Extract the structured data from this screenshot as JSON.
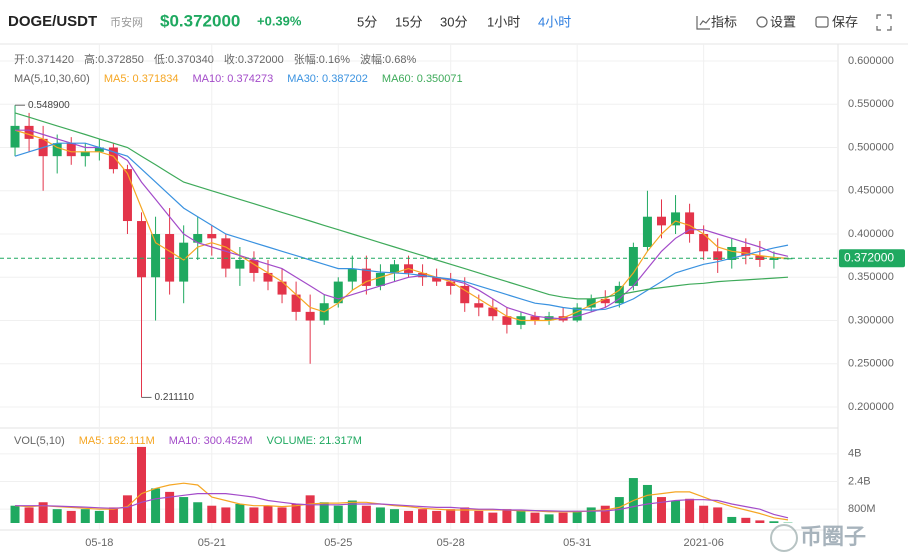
{
  "header": {
    "symbol": "DOGE/USDT",
    "exchange": "币安网",
    "price": "$0.372000",
    "change": "+0.39%",
    "intervals": [
      "5分",
      "15分",
      "30分",
      "1小时",
      "4小时"
    ],
    "active_interval": 4,
    "tools": [
      "指标",
      "设置",
      "保存"
    ]
  },
  "watermark": "币圈子",
  "chart_data": {
    "type": "candlestick",
    "info": [
      "开:0.371420",
      "高:0.372850",
      "低:0.370340",
      "收:0.372000",
      "张幅:0.16%",
      "波幅:0.68%"
    ],
    "ma_title": "MA(5,10,30,60)",
    "up_color": "#1fa960",
    "down_color": "#e3344a",
    "categories": [
      null,
      null,
      null,
      null,
      null,
      null,
      "05-18",
      null,
      null,
      null,
      null,
      null,
      null,
      null,
      "05-21",
      null,
      null,
      null,
      null,
      null,
      null,
      null,
      null,
      "05-25",
      null,
      null,
      null,
      null,
      null,
      null,
      null,
      "05-28",
      null,
      null,
      null,
      null,
      null,
      null,
      null,
      null,
      "05-31",
      null,
      null,
      null,
      null,
      null,
      null,
      null,
      null,
      "2021-06",
      null,
      null,
      null,
      null,
      null,
      null
    ],
    "open": [
      0.5,
      0.525,
      0.51,
      0.49,
      0.505,
      0.49,
      0.495,
      0.5,
      0.475,
      0.415,
      0.35,
      0.4,
      0.345,
      0.39,
      0.4,
      0.395,
      0.36,
      0.37,
      0.355,
      0.345,
      0.33,
      0.31,
      0.3,
      0.32,
      0.345,
      0.36,
      0.34,
      0.355,
      0.365,
      0.355,
      0.35,
      0.345,
      0.34,
      0.32,
      0.315,
      0.305,
      0.295,
      0.305,
      0.3,
      0.305,
      0.3,
      0.315,
      0.325,
      0.32,
      0.34,
      0.385,
      0.42,
      0.41,
      0.425,
      0.4,
      0.38,
      0.37,
      0.385,
      0.375,
      0.37,
      0.37142
    ],
    "high": [
      0.5489,
      0.54,
      0.525,
      0.515,
      0.512,
      0.505,
      0.51,
      0.505,
      0.48,
      0.425,
      0.42,
      0.43,
      0.41,
      0.42,
      0.41,
      0.4,
      0.385,
      0.38,
      0.37,
      0.36,
      0.345,
      0.33,
      0.33,
      0.35,
      0.375,
      0.375,
      0.365,
      0.37,
      0.375,
      0.365,
      0.36,
      0.355,
      0.35,
      0.33,
      0.325,
      0.315,
      0.31,
      0.31,
      0.31,
      0.315,
      0.32,
      0.33,
      0.335,
      0.345,
      0.39,
      0.45,
      0.44,
      0.445,
      0.435,
      0.41,
      0.395,
      0.395,
      0.395,
      0.392,
      0.38,
      0.37285
    ],
    "low": [
      0.49,
      0.495,
      0.45,
      0.47,
      0.48,
      0.478,
      0.485,
      0.47,
      0.4,
      0.21111,
      0.3,
      0.33,
      0.32,
      0.37,
      0.375,
      0.35,
      0.34,
      0.345,
      0.335,
      0.32,
      0.3,
      0.25,
      0.295,
      0.315,
      0.335,
      0.33,
      0.335,
      0.345,
      0.35,
      0.34,
      0.34,
      0.33,
      0.31,
      0.305,
      0.3,
      0.285,
      0.29,
      0.295,
      0.295,
      0.298,
      0.298,
      0.31,
      0.315,
      0.315,
      0.335,
      0.38,
      0.395,
      0.4,
      0.39,
      0.37,
      0.355,
      0.36,
      0.365,
      0.362,
      0.36,
      0.37034
    ],
    "close": [
      0.525,
      0.51,
      0.49,
      0.505,
      0.49,
      0.495,
      0.5,
      0.475,
      0.415,
      0.35,
      0.4,
      0.345,
      0.39,
      0.4,
      0.395,
      0.36,
      0.37,
      0.355,
      0.345,
      0.33,
      0.31,
      0.3,
      0.32,
      0.345,
      0.36,
      0.34,
      0.355,
      0.365,
      0.355,
      0.35,
      0.345,
      0.34,
      0.32,
      0.315,
      0.305,
      0.295,
      0.305,
      0.3,
      0.305,
      0.3,
      0.315,
      0.325,
      0.32,
      0.34,
      0.385,
      0.42,
      0.41,
      0.425,
      0.4,
      0.38,
      0.37,
      0.385,
      0.375,
      0.37,
      0.372,
      0.372
    ],
    "ma_series": [
      {
        "name": "MA5: 0.371834",
        "color": "#f5a623",
        "values": [
          0.52,
          0.515,
          0.51,
          0.5,
          0.495,
          0.495,
          0.495,
          0.49,
          0.47,
          0.43,
          0.39,
          0.38,
          0.37,
          0.385,
          0.39,
          0.385,
          0.375,
          0.365,
          0.355,
          0.345,
          0.33,
          0.315,
          0.31,
          0.32,
          0.335,
          0.345,
          0.35,
          0.355,
          0.36,
          0.355,
          0.35,
          0.345,
          0.335,
          0.325,
          0.315,
          0.305,
          0.3,
          0.3,
          0.3,
          0.303,
          0.31,
          0.318,
          0.325,
          0.335,
          0.355,
          0.38,
          0.4,
          0.415,
          0.41,
          0.4,
          0.385,
          0.38,
          0.378,
          0.375,
          0.373,
          0.371834
        ]
      },
      {
        "name": "MA10: 0.374273",
        "color": "#a34bc9",
        "values": [
          0.52,
          0.52,
          0.515,
          0.51,
          0.505,
          0.5,
          0.5,
          0.495,
          0.485,
          0.46,
          0.44,
          0.42,
          0.4,
          0.39,
          0.385,
          0.38,
          0.375,
          0.37,
          0.365,
          0.36,
          0.35,
          0.34,
          0.33,
          0.325,
          0.33,
          0.335,
          0.34,
          0.345,
          0.35,
          0.352,
          0.35,
          0.347,
          0.343,
          0.335,
          0.325,
          0.315,
          0.31,
          0.305,
          0.303,
          0.302,
          0.305,
          0.31,
          0.315,
          0.325,
          0.34,
          0.36,
          0.38,
          0.395,
          0.405,
          0.405,
          0.4,
          0.395,
          0.39,
          0.385,
          0.378,
          0.374273
        ]
      },
      {
        "name": "MA30: 0.387202",
        "color": "#3a92e0",
        "values": [
          0.49,
          0.495,
          0.5,
          0.505,
          0.505,
          0.505,
          0.5,
          0.495,
          0.49,
          0.475,
          0.46,
          0.445,
          0.43,
          0.42,
          0.41,
          0.4,
          0.395,
          0.39,
          0.385,
          0.38,
          0.375,
          0.37,
          0.365,
          0.36,
          0.36,
          0.358,
          0.356,
          0.355,
          0.354,
          0.352,
          0.35,
          0.348,
          0.345,
          0.34,
          0.335,
          0.33,
          0.325,
          0.32,
          0.318,
          0.315,
          0.313,
          0.312,
          0.313,
          0.318,
          0.325,
          0.335,
          0.345,
          0.355,
          0.36,
          0.365,
          0.368,
          0.372,
          0.376,
          0.38,
          0.384,
          0.387202
        ]
      },
      {
        "name": "MA60: 0.350071",
        "color": "#3eaa5a",
        "values": [
          0.54,
          0.535,
          0.53,
          0.525,
          0.52,
          0.515,
          0.51,
          0.505,
          0.5,
          0.49,
          0.48,
          0.47,
          0.46,
          0.455,
          0.45,
          0.445,
          0.44,
          0.435,
          0.43,
          0.425,
          0.42,
          0.415,
          0.41,
          0.405,
          0.4,
          0.395,
          0.39,
          0.385,
          0.38,
          0.375,
          0.37,
          0.365,
          0.36,
          0.355,
          0.35,
          0.345,
          0.34,
          0.335,
          0.33,
          0.327,
          0.325,
          0.325,
          0.327,
          0.33,
          0.333,
          0.336,
          0.338,
          0.34,
          0.342,
          0.343,
          0.345,
          0.346,
          0.347,
          0.348,
          0.349,
          0.350071
        ]
      }
    ],
    "ylim": [
      0.185,
      0.6185
    ],
    "yticks": [
      {
        "value": 0.6,
        "label": "0.600000"
      },
      {
        "value": 0.55,
        "label": "0.550000"
      },
      {
        "value": 0.5,
        "label": "0.500000"
      },
      {
        "value": 0.45,
        "label": "0.450000"
      },
      {
        "value": 0.4,
        "label": "0.400000"
      },
      {
        "value": 0.35,
        "label": "0.350000"
      },
      {
        "value": 0.3,
        "label": "0.300000"
      },
      {
        "value": 0.25,
        "label": "0.250000"
      },
      {
        "value": 0.2,
        "label": "0.200000"
      }
    ],
    "current_price": {
      "value": 0.372,
      "label": "0.372000"
    },
    "high_mark": {
      "value": 0.5489,
      "label": "0.548900"
    },
    "low_mark": {
      "value": 0.21111,
      "label": "0.211110"
    },
    "grid": true,
    "volume": {
      "title": "VOL(5,10)",
      "name": "VOLUME: 21.317M",
      "name_color": "#1fa960",
      "values": [
        1.0,
        0.9,
        1.2,
        0.8,
        0.7,
        0.8,
        0.7,
        0.9,
        1.6,
        4.4,
        2.0,
        1.8,
        1.5,
        1.2,
        1.0,
        0.9,
        1.1,
        0.9,
        1.0,
        0.9,
        1.1,
        1.6,
        1.2,
        1.0,
        1.3,
        1.0,
        0.9,
        0.8,
        0.7,
        0.8,
        0.7,
        0.8,
        0.9,
        0.7,
        0.6,
        0.8,
        0.7,
        0.6,
        0.5,
        0.6,
        0.7,
        0.9,
        1.0,
        1.5,
        2.6,
        2.2,
        1.5,
        1.3,
        1.4,
        1.0,
        0.9,
        0.35,
        0.3,
        0.15,
        0.1,
        0.021317
      ],
      "ma_series": [
        {
          "name": "MA5: 182.111M",
          "color": "#f5a623",
          "values": [
            1.0,
            0.95,
            1.0,
            0.95,
            0.9,
            0.85,
            0.8,
            0.8,
            0.95,
            1.7,
            2.0,
            2.2,
            2.3,
            2.2,
            1.5,
            1.3,
            1.1,
            1.0,
            1.0,
            0.95,
            1.0,
            1.1,
            1.15,
            1.15,
            1.2,
            1.2,
            1.1,
            1.0,
            0.95,
            0.85,
            0.8,
            0.75,
            0.75,
            0.75,
            0.75,
            0.75,
            0.7,
            0.7,
            0.65,
            0.65,
            0.65,
            0.7,
            0.75,
            0.9,
            1.3,
            1.6,
            1.7,
            1.8,
            1.8,
            1.5,
            1.2,
            0.95,
            0.75,
            0.55,
            0.3,
            0.182111
          ]
        },
        {
          "name": "MA10: 300.452M",
          "color": "#a34bc9",
          "values": [
            1.0,
            1.0,
            1.0,
            0.98,
            0.95,
            0.92,
            0.88,
            0.85,
            0.9,
            1.2,
            1.4,
            1.5,
            1.6,
            1.7,
            1.7,
            1.7,
            1.6,
            1.5,
            1.3,
            1.2,
            1.1,
            1.05,
            1.05,
            1.05,
            1.1,
            1.1,
            1.1,
            1.05,
            1.0,
            0.95,
            0.9,
            0.9,
            0.85,
            0.8,
            0.8,
            0.75,
            0.75,
            0.72,
            0.7,
            0.68,
            0.68,
            0.68,
            0.7,
            0.78,
            0.95,
            1.1,
            1.2,
            1.3,
            1.35,
            1.35,
            1.3,
            1.1,
            0.95,
            0.8,
            0.5,
            0.300452
          ]
        }
      ],
      "ylim": [
        0,
        4.8
      ],
      "yticks": [
        {
          "value": 4,
          "label": "4B"
        },
        {
          "value": 2.4,
          "label": "2.4B"
        },
        {
          "value": 0.8,
          "label": "800M"
        }
      ]
    }
  }
}
